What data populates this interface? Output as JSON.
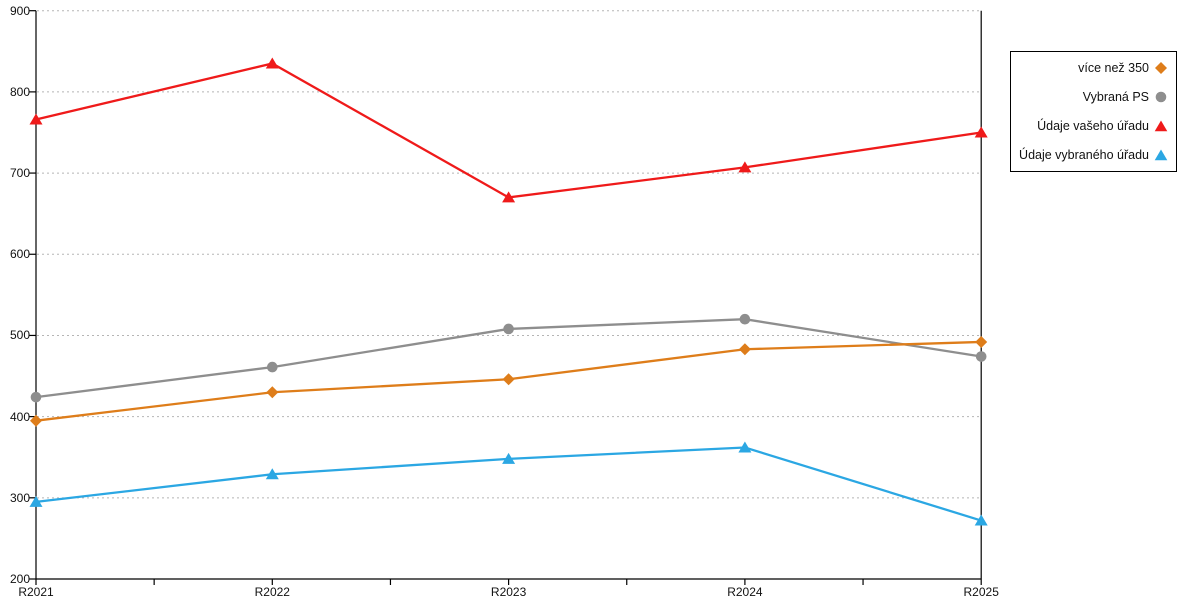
{
  "chart_data": {
    "type": "line",
    "title": "",
    "xlabel": "",
    "ylabel": "",
    "categories": [
      "R2021",
      "R2022",
      "R2023",
      "R2024",
      "R2025"
    ],
    "series": [
      {
        "name": "více než 350",
        "marker": "diamond",
        "color": "#DE7D1A",
        "values": [
          395,
          430,
          446,
          483,
          492
        ]
      },
      {
        "name": "Vybraná PS",
        "marker": "circle",
        "color": "#8E8E8E",
        "values": [
          424,
          461,
          508,
          520,
          474
        ]
      },
      {
        "name": "Údaje vašeho úřadu",
        "marker": "triangle",
        "color": "#EF1A1A",
        "values": [
          766,
          835,
          670,
          707,
          750
        ]
      },
      {
        "name": "Údaje vybraného úřadu",
        "marker": "triangle",
        "color": "#2BA7E3",
        "values": [
          295,
          329,
          348,
          362,
          272
        ]
      }
    ],
    "ylim": [
      200,
      900
    ],
    "yticks": [
      200,
      300,
      400,
      500,
      600,
      700,
      800,
      900
    ],
    "grid": "horizontal-dashed",
    "gridline_color": "#b5b5b5",
    "axis_color": "#000000",
    "legend_position": "outside-top-right"
  }
}
